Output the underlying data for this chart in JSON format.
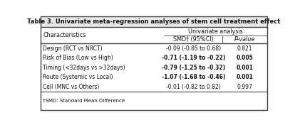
{
  "title": "Table 3. Univariate meta-regression analyses of stem cell treatment effect",
  "col_header_span": "Univariate analysis",
  "col_header_smd": "SMD† (95%CI)",
  "col_header_p": "P-value",
  "row_label": "Characteristics",
  "rows": [
    [
      "Design (RCT vs NRCT)",
      "-0.09 (-0.85 to 0.68)",
      "0.821",
      false
    ],
    [
      "Risk of Bias (Low vs High)",
      "-0.71 (-1.19 to -0.22)",
      "0.005",
      true
    ],
    [
      "Timing (<32days vs >32days)",
      "-0.79 (-1.25 to -0.32)",
      "0.001",
      true
    ],
    [
      "Route (Systemic vs Local)",
      "-1.07 (-1.68 to -0.46)",
      "0.001",
      true
    ],
    [
      "Cell (MNC vs Others)",
      "-0.01 (-0.82 to 0.82)",
      "0.997",
      false
    ]
  ],
  "footnote": "†SMD: Standard Mean Difference",
  "title_bg": "#e8e8e8",
  "bg_color": "#ffffff",
  "border_color": "#444444",
  "text_color": "#111111",
  "col_split": 0.545,
  "col_p_split": 0.795
}
